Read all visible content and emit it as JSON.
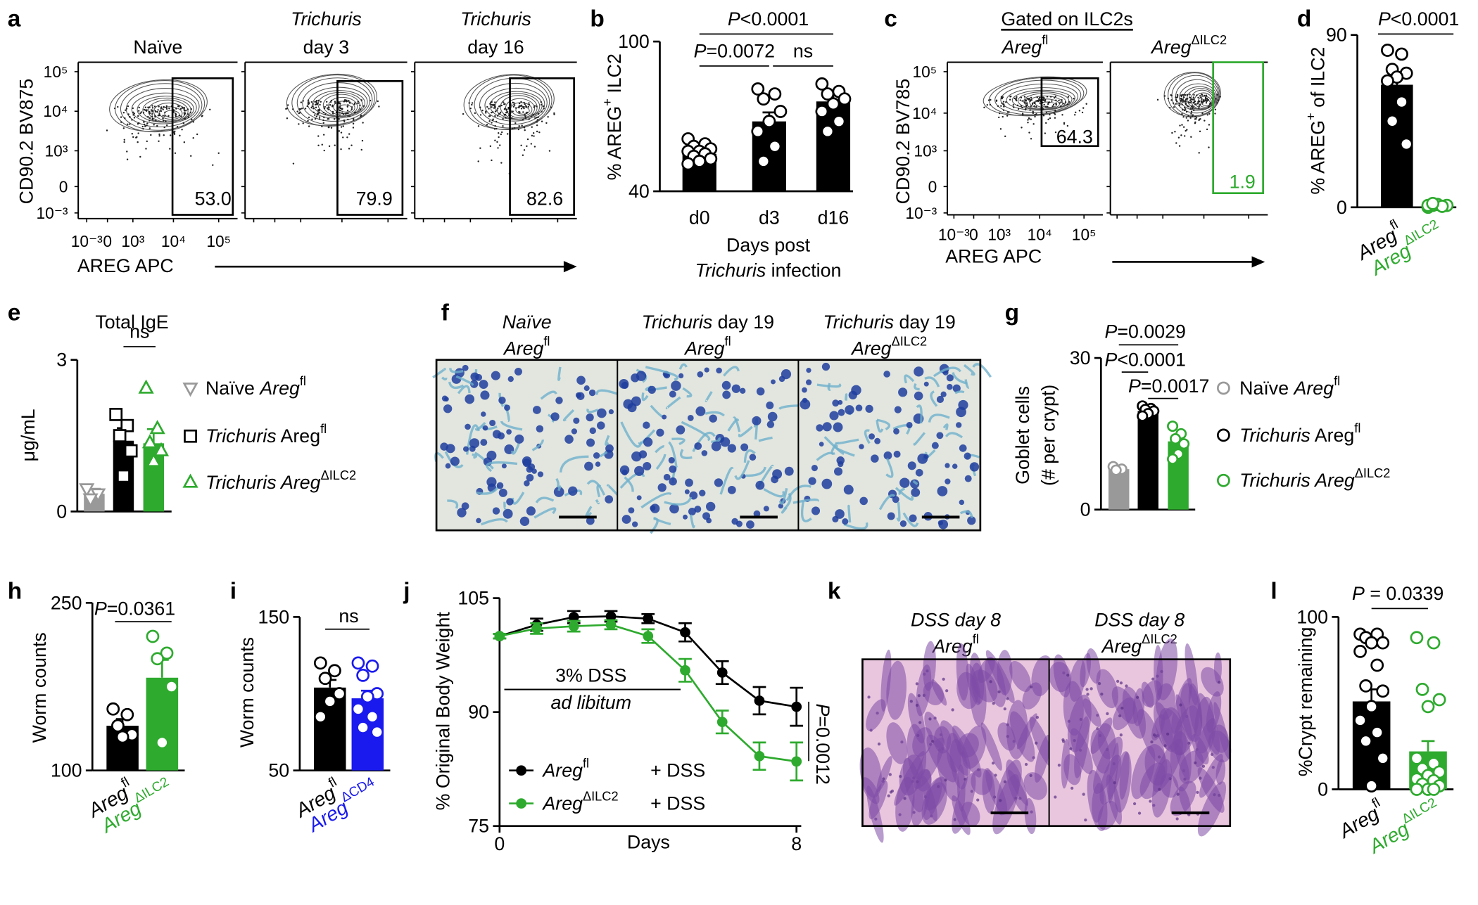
{
  "figure": {
    "a": {
      "letter": "a",
      "plots": [
        {
          "title": [
            "Naïve"
          ],
          "gate": "53.0",
          "color": "#000000"
        },
        {
          "title": [
            "Trichuris",
            "day 3"
          ],
          "gate": "79.9",
          "color": "#000000"
        },
        {
          "title": [
            "Trichuris",
            "day 16"
          ],
          "gate": "82.6",
          "color": "#000000"
        }
      ],
      "ylabel": "CD90.2 BV875",
      "xlabel": "AREG APC",
      "yticks": [
        "10⁵",
        "10⁴",
        "10³",
        "0",
        "10⁻³"
      ],
      "xticks": [
        "10⁻³",
        "0",
        "10³",
        "10⁴",
        "10⁵"
      ]
    },
    "b": {
      "letter": "b",
      "ylabel": [
        "% AREG",
        "+",
        " ILC2"
      ],
      "ylim": [
        40,
        100
      ],
      "yticks": [
        40,
        100
      ],
      "xlabel": "Days post",
      "xlabel2": [
        "Trichuris",
        " infection"
      ],
      "groups": [
        {
          "label": "d0",
          "color": "#000000",
          "value": 55,
          "error": 1.1,
          "points": [
            61,
            59,
            58,
            57,
            56,
            56,
            55,
            54,
            53,
            52,
            51
          ]
        },
        {
          "label": "d3",
          "color": "#000000",
          "value": 68,
          "error": 3.6,
          "points": [
            81,
            79,
            77,
            72,
            68,
            64,
            58,
            52
          ]
        },
        {
          "label": "d16",
          "color": "#000000",
          "value": 76,
          "error": 2.4,
          "points": [
            83,
            80,
            79,
            77,
            75,
            72,
            68,
            64
          ]
        }
      ],
      "annotations": [
        [
          "P",
          "=0.0072"
        ],
        [
          "P",
          "<0.0001"
        ],
        [
          "ns"
        ]
      ]
    },
    "c": {
      "letter": "c",
      "header": "Gated on ILC2s",
      "plots": [
        {
          "title": [
            "Areg",
            "fl"
          ],
          "gate": "64.3",
          "color": "#000000"
        },
        {
          "title": [
            "Areg",
            "ΔILC2"
          ],
          "gate": "1.9",
          "color": "#2eaa2e"
        }
      ],
      "ylabel": "CD90.2 BV785",
      "xlabel": "AREG APC",
      "yticks": [
        "10⁵",
        "10⁴",
        "10³",
        "0",
        "10⁻³"
      ],
      "xticks": [
        "10⁻³",
        "0",
        "10³",
        "10⁴",
        "10⁵"
      ]
    },
    "d": {
      "letter": "d",
      "ylabel": [
        "% AREG",
        "+",
        " of ILC2"
      ],
      "ylim": [
        0,
        90
      ],
      "yticks": [
        0,
        90
      ],
      "groups": [
        {
          "label": [
            "Areg",
            "fl"
          ],
          "color": "#000000",
          "value": 64,
          "error": 4,
          "points": [
            82,
            80,
            72,
            70,
            68,
            66,
            55,
            45,
            33
          ]
        },
        {
          "label": [
            "Areg",
            "ΔILC2"
          ],
          "color": "#2eaa2e",
          "value": 1,
          "error": 0.3,
          "points": [
            0,
            0.5,
            1,
            1,
            1.5,
            1,
            0.5,
            2
          ]
        }
      ],
      "annotations": [
        [
          "P",
          "<0.0001"
        ]
      ]
    },
    "e": {
      "letter": "e",
      "title": "Total IgE",
      "ylabel": "μg/mL",
      "ylim": [
        0,
        3
      ],
      "yticks": [
        0,
        3
      ],
      "groups": [
        {
          "legend": [
            "Naïve ",
            "Areg",
            "fl"
          ],
          "color": "#999999",
          "marker": "triangle-down",
          "value": 0.35,
          "error": 0.1,
          "points": [
            0.45,
            0.35,
            0.25
          ]
        },
        {
          "legend": [
            "Trichuris",
            " Areg",
            "fl"
          ],
          "color": "#000000",
          "marker": "square",
          "value": 1.4,
          "error": 0.25,
          "points": [
            1.92,
            1.7,
            1.5,
            1.2,
            0.7
          ]
        },
        {
          "legend": [
            "Trichuris",
            " Areg",
            "ΔILC2"
          ],
          "color": "#2eaa2e",
          "marker": "triangle",
          "value": 1.35,
          "error": 0.28,
          "points": [
            2.44,
            1.64,
            1.36,
            1.2,
            0.99
          ]
        }
      ],
      "annotations": [
        [
          "ns"
        ]
      ]
    },
    "f": {
      "letter": "f",
      "images": [
        {
          "title": "Naïve",
          "subtitle": [
            "Areg",
            "fl"
          ]
        },
        {
          "title": [
            "Trichuris",
            " day 19"
          ],
          "subtitle": [
            "Areg",
            "fl"
          ]
        },
        {
          "title": [
            "Trichuris",
            " day 19"
          ],
          "subtitle": [
            "Areg",
            "ΔILC2"
          ]
        }
      ]
    },
    "g": {
      "letter": "g",
      "ylabel": "Goblet cells",
      "ylabel2": "(# per crypt)",
      "ylim": [
        0,
        30
      ],
      "yticks": [
        0,
        30
      ],
      "groups": [
        {
          "legend": [
            "Naïve ",
            "Areg",
            "fl"
          ],
          "color": "#999999",
          "marker": "circle",
          "value": 8,
          "error": 0.5,
          "points": [
            8.5,
            8,
            7.8
          ]
        },
        {
          "legend": [
            "Trichuris",
            " Areg",
            "fl"
          ],
          "color": "#000000",
          "marker": "circle",
          "value": 19.5,
          "error": 0.4,
          "points": [
            20.5,
            20,
            19.8,
            19.5,
            19,
            18.5
          ]
        },
        {
          "legend": [
            "Trichuris",
            " Areg",
            "ΔILC2"
          ],
          "color": "#2eaa2e",
          "marker": "circle",
          "value": 13.5,
          "error": 1.2,
          "points": [
            16.5,
            15,
            14,
            13,
            11,
            10
          ]
        }
      ],
      "annotations": [
        [
          "P",
          "=0.0029"
        ],
        [
          "P",
          "<0.0001"
        ],
        [
          "P",
          "=0.0017"
        ]
      ]
    },
    "h": {
      "letter": "h",
      "ylabel": "Worm counts",
      "ylim": [
        100,
        250
      ],
      "yticks": [
        100,
        250
      ],
      "groups": [
        {
          "label": [
            "Areg",
            "fl"
          ],
          "color": "#000000",
          "value": 140,
          "error": 6,
          "points": [
            155,
            150,
            140,
            132,
            130
          ]
        },
        {
          "label": [
            "Areg",
            "ΔILC2"
          ],
          "color": "#2eaa2e",
          "value": 183,
          "error": 16,
          "points": [
            220,
            205,
            200,
            175,
            125
          ]
        }
      ],
      "annotations": [
        [
          "P",
          "=0.0361"
        ]
      ]
    },
    "i": {
      "letter": "i",
      "ylabel": "Worm counts",
      "ylim": [
        50,
        150
      ],
      "yticks": [
        50,
        150
      ],
      "groups": [
        {
          "label": [
            "Areg",
            "fl"
          ],
          "color": "#000000",
          "value": 104,
          "error": 5,
          "points": [
            120,
            115,
            110,
            100,
            95,
            85
          ]
        },
        {
          "label": [
            "Areg",
            "ΔCD4"
          ],
          "color": "#1a1aee",
          "value": 97,
          "error": 5,
          "points": [
            120,
            118,
            112,
            100,
            98,
            90,
            85,
            78,
            75
          ]
        }
      ],
      "annotations": [
        [
          "ns"
        ]
      ]
    },
    "j": {
      "letter": "j",
      "type": "line",
      "ylabel": "% Original Body Weight",
      "xlabel": "Days",
      "x": [
        0,
        1,
        2,
        3,
        4,
        5,
        6,
        7,
        8
      ],
      "xlim": [
        0,
        8
      ],
      "xticks": [
        0,
        8
      ],
      "ylim": [
        75,
        105
      ],
      "yticks": [
        75,
        90,
        105
      ],
      "series": [
        {
          "name": [
            "Areg",
            "fl"
          ],
          "treatment": "+ DSS",
          "color": "#000000",
          "values": [
            100,
            101.5,
            102.5,
            102.6,
            102.3,
            100.5,
            95.2,
            91.5,
            90.7
          ],
          "errors": [
            0.3,
            0.8,
            0.8,
            0.7,
            0.6,
            1.2,
            1.5,
            1.8,
            2.5
          ]
        },
        {
          "name": [
            "Areg",
            "ΔILC2"
          ],
          "treatment": "+ DSS",
          "color": "#2eaa2e",
          "values": [
            100,
            101,
            101.3,
            101.5,
            100,
            95.5,
            88.7,
            84.2,
            83.5
          ],
          "errors": [
            0.3,
            0.7,
            0.7,
            0.6,
            0.9,
            1.5,
            1.5,
            1.8,
            2.5
          ]
        }
      ],
      "annotation": [
        "3% DSS",
        "ad libitum"
      ],
      "pvalue": [
        "P",
        "=0.0012"
      ]
    },
    "k": {
      "letter": "k",
      "images": [
        {
          "title": "DSS day 8",
          "subtitle": [
            "Areg",
            "fl"
          ]
        },
        {
          "title": "DSS day 8",
          "subtitle": [
            "Areg",
            "ΔILC2"
          ]
        }
      ]
    },
    "l": {
      "letter": "l",
      "ylabel": "%Crypt remaining",
      "ylim": [
        0,
        100
      ],
      "yticks": [
        0,
        100
      ],
      "groups": [
        {
          "label": [
            "Areg",
            "fl"
          ],
          "color": "#000000",
          "value": 51,
          "error": 7,
          "points": [
            90,
            90,
            88,
            85,
            85,
            80,
            72,
            60,
            57,
            48,
            40,
            33,
            28,
            18,
            2
          ]
        },
        {
          "label": [
            "Areg",
            "ΔILC2"
          ],
          "color": "#2eaa2e",
          "value": 22,
          "error": 6,
          "points": [
            88,
            85,
            58,
            52,
            48,
            18,
            15,
            12,
            10,
            8,
            6,
            5,
            3,
            2,
            0,
            0,
            0
          ]
        }
      ],
      "annotations": [
        [
          "P",
          " = 0.0339"
        ]
      ]
    }
  }
}
